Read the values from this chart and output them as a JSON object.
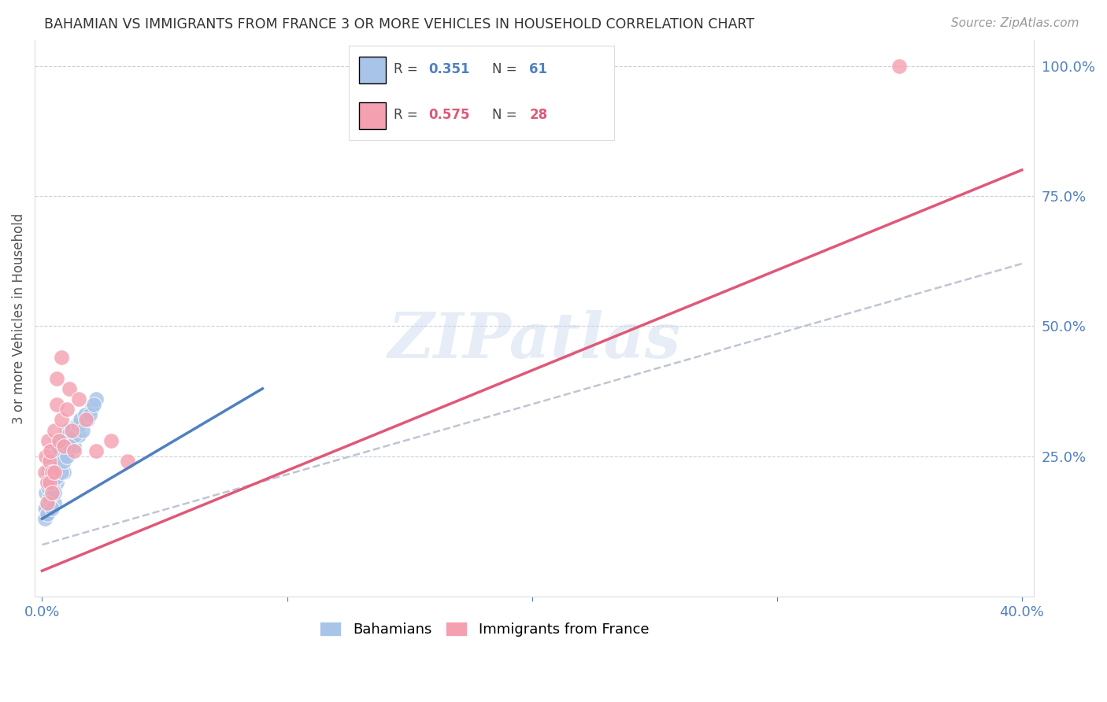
{
  "title": "BAHAMIAN VS IMMIGRANTS FROM FRANCE 3 OR MORE VEHICLES IN HOUSEHOLD CORRELATION CHART",
  "source": "Source: ZipAtlas.com",
  "ylabel_left": "3 or more Vehicles in Household",
  "blue_R": 0.351,
  "blue_N": 61,
  "pink_R": 0.575,
  "pink_N": 28,
  "blue_label": "Bahamians",
  "pink_label": "Immigrants from France",
  "blue_color": "#a8c4e8",
  "pink_color": "#f4a0b0",
  "blue_line_color": "#5080c0",
  "pink_line_color": "#e05878",
  "gray_line_color": "#b8c0cc",
  "watermark": "ZIPatlas",
  "xlim": [
    0,
    40
  ],
  "ylim": [
    0,
    100
  ],
  "blue_line_x0": 0,
  "blue_line_y0": 13,
  "blue_line_x1": 9,
  "blue_line_y1": 38,
  "pink_line_x0": 0,
  "pink_line_y0": 3,
  "pink_line_x1": 40,
  "pink_line_y1": 80,
  "gray_line_x0": 0,
  "gray_line_y0": 8,
  "gray_line_x1": 40,
  "gray_line_y1": 62,
  "blue_scatter_x": [
    0.1,
    0.15,
    0.2,
    0.2,
    0.25,
    0.3,
    0.35,
    0.4,
    0.4,
    0.5,
    0.5,
    0.6,
    0.6,
    0.7,
    0.7,
    0.8,
    0.8,
    0.9,
    0.9,
    1.0,
    1.0,
    1.1,
    1.2,
    1.3,
    1.4,
    1.5,
    1.6,
    1.8,
    2.0,
    2.2,
    0.15,
    0.25,
    0.35,
    0.45,
    0.55,
    0.65,
    0.75,
    0.85,
    0.95,
    1.05,
    1.15,
    1.25,
    1.35,
    1.45,
    1.55,
    1.65,
    1.75,
    1.85,
    1.95,
    2.1,
    0.1,
    0.2,
    0.3,
    0.4,
    0.5,
    0.6,
    0.7,
    0.8,
    0.9,
    1.0,
    1.1
  ],
  "blue_scatter_y": [
    15,
    18,
    20,
    14,
    22,
    16,
    19,
    21,
    17,
    23,
    16,
    25,
    20,
    27,
    22,
    28,
    24,
    26,
    22,
    30,
    26,
    28,
    30,
    27,
    31,
    29,
    32,
    33,
    34,
    36,
    15,
    19,
    22,
    20,
    24,
    26,
    28,
    25,
    27,
    29,
    28,
    30,
    29,
    31,
    32,
    30,
    33,
    32,
    33,
    35,
    13,
    14,
    17,
    15,
    18,
    21,
    23,
    22,
    24,
    25,
    27
  ],
  "pink_scatter_x": [
    0.1,
    0.15,
    0.2,
    0.25,
    0.3,
    0.35,
    0.4,
    0.5,
    0.6,
    0.7,
    0.8,
    0.9,
    1.0,
    1.1,
    1.2,
    1.5,
    1.8,
    2.2,
    2.8,
    3.5,
    0.2,
    0.3,
    0.4,
    0.5,
    0.6,
    0.8,
    1.3,
    35.0
  ],
  "pink_scatter_y": [
    22,
    25,
    20,
    28,
    24,
    26,
    22,
    30,
    35,
    28,
    32,
    27,
    34,
    38,
    30,
    36,
    32,
    26,
    28,
    24,
    16,
    20,
    18,
    22,
    40,
    44,
    26,
    100
  ]
}
